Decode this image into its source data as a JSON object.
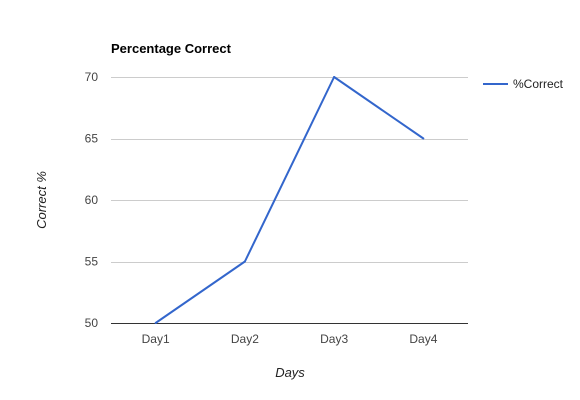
{
  "chart_data": {
    "type": "line",
    "title": "Percentage Correct",
    "xlabel": "Days",
    "ylabel": "Correct %",
    "categories": [
      "Day1",
      "Day2",
      "Day3",
      "Day4"
    ],
    "series": [
      {
        "name": "%Correct",
        "values": [
          50,
          55,
          70,
          65
        ],
        "color": "#3366cc"
      }
    ],
    "ylim": [
      50,
      70
    ],
    "yticks": [
      50,
      55,
      60,
      65,
      70
    ],
    "grid": true,
    "legend": "right"
  }
}
